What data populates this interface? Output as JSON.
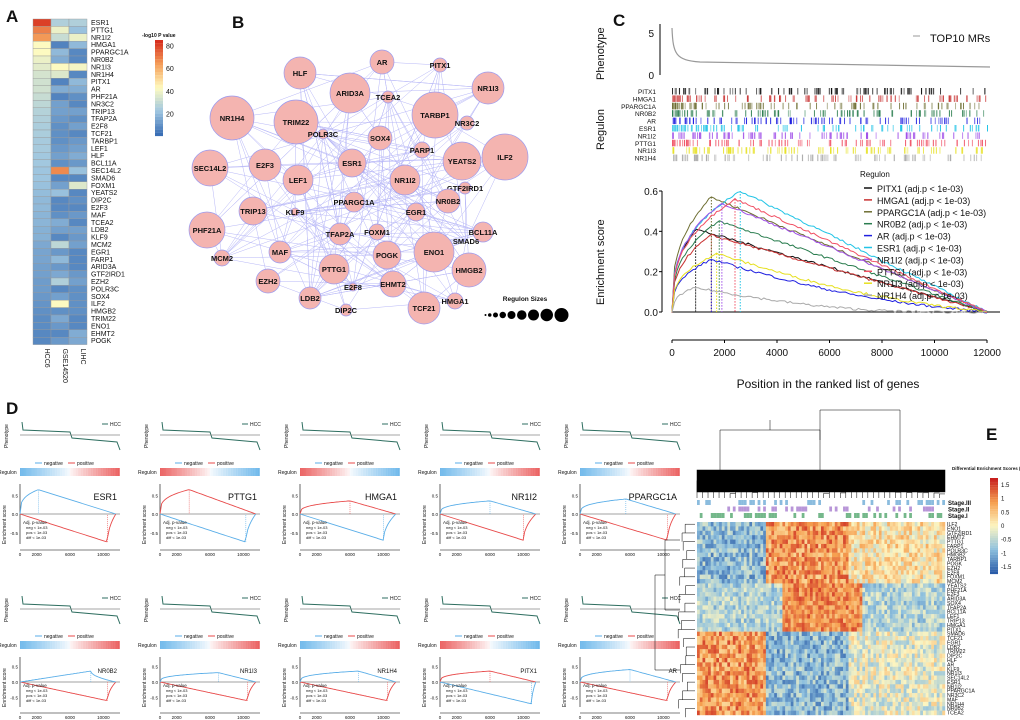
{
  "panel_labels": [
    "A",
    "B",
    "C",
    "D",
    "E"
  ],
  "chart_data": [
    {
      "type": "heatmap",
      "panel": "A",
      "colorbar_title": "-log10 P value",
      "colorbar_ticks": [
        20,
        40,
        60,
        80
      ],
      "colorbar_range": [
        0,
        85
      ],
      "colormap": [
        "#3a6fb5",
        "#9fc6e0",
        "#fffbc0",
        "#f5a05a",
        "#d7301f"
      ],
      "columns": [
        "HCC6",
        "GSE14520",
        "LIHC"
      ],
      "rows": [
        "ESR1",
        "PTTG1",
        "NR1I2",
        "HMGA1",
        "PPARGC1A",
        "NR0B2",
        "NR1I3",
        "NR1H4",
        "PITX1",
        "AR",
        "PHF21A",
        "NR3C2",
        "TRIP13",
        "TFAP2A",
        "E2F8",
        "TCF21",
        "TARBP1",
        "LEF1",
        "HLF",
        "BCL11A",
        "SEC14L2",
        "SMAD6",
        "FOXM1",
        "YEATS2",
        "DIP2C",
        "E2F3",
        "MAF",
        "TCEA2",
        "LDB2",
        "KLF9",
        "MCM2",
        "EGR1",
        "FARP1",
        "ARID3A",
        "GTF2IRD1",
        "EZH2",
        "POLR3C",
        "SOX4",
        "ILF2",
        "HMGB2",
        "TRIM22",
        "ENO1",
        "EHMT2",
        "POGK"
      ],
      "values": [
        [
          82,
          70,
          65,
          42,
          42,
          38,
          36,
          33,
          32,
          32,
          30,
          28,
          26,
          25,
          24,
          24,
          23,
          23,
          22,
          22,
          21,
          21,
          20,
          19,
          18,
          18,
          17,
          17,
          16,
          16,
          14,
          13,
          13,
          12,
          12,
          11,
          11,
          10,
          9,
          8,
          7,
          7,
          6,
          6
        ],
        [
          25,
          38,
          30,
          5,
          18,
          15,
          42,
          35,
          5,
          15,
          5,
          12,
          12,
          10,
          8,
          8,
          8,
          10,
          12,
          8,
          68,
          6,
          12,
          20,
          6,
          6,
          8,
          15,
          12,
          6,
          28,
          10,
          18,
          10,
          14,
          25,
          6,
          12,
          42,
          8,
          14,
          10,
          6,
          10
        ],
        [
          25,
          20,
          38,
          18,
          6,
          6,
          40,
          6,
          18,
          15,
          8,
          6,
          12,
          8,
          12,
          6,
          10,
          12,
          15,
          10,
          20,
          6,
          35,
          6,
          8,
          6,
          10,
          6,
          12,
          10,
          12,
          6,
          6,
          6,
          10,
          12,
          8,
          8,
          8,
          8,
          6,
          6,
          15,
          14
        ]
      ]
    },
    {
      "type": "network",
      "panel": "B",
      "node_color": "#f4b4b0",
      "edge_color": "#7c7cf0",
      "legend_title": "Regulon Sizes",
      "nodes": [
        "HLF",
        "AR",
        "PITX1",
        "NR1I3",
        "ARID3A",
        "TCEA2",
        "TARBP1",
        "NR3C2",
        "NR1H4",
        "TRIM22",
        "POLR3C",
        "SOX4",
        "PARP1",
        "YEATS2",
        "ILF2",
        "SEC14L2",
        "E2F3",
        "ESR1",
        "LEF1",
        "NR1I2",
        "GTF2IRD1",
        "NR0B2",
        "PPARGC1A",
        "TRIP13",
        "KLF9",
        "EGR1",
        "PHF21A",
        "TFAP2A",
        "FOXM1",
        "BCL11A",
        "SMAD6",
        "MAF",
        "ENO1",
        "MCM2",
        "POGK",
        "HMGB2",
        "PTTG1",
        "EZH2",
        "EHMT2",
        "E2F8",
        "LDB2",
        "HMGA1",
        "TCF21",
        "DIP2C"
      ]
    },
    {
      "type": "line",
      "panel": "C",
      "phenotype_ylabel": "Phenotype",
      "phenotype_yticks": [
        0,
        5
      ],
      "phenotype_legend": "TOP10 MRs",
      "regulon_ylabel": "Regulon",
      "ylabel": "Enrichment score",
      "xlabel": "Position in the ranked list of genes",
      "xlim": [
        0,
        12000
      ],
      "ylim": [
        0,
        0.6
      ],
      "xticks": [
        0,
        2000,
        4000,
        6000,
        8000,
        10000,
        12000
      ],
      "yticks": [
        "0.0",
        "0.2",
        "0.4",
        "0.6"
      ],
      "legend_title": "Regulon",
      "legend_position": "top-right",
      "series": [
        {
          "name": "PITX1 (adj.p < 1e-03)",
          "regulon": "PITX1",
          "color": "#111111",
          "peak_x": 900,
          "peak_es": 0.41
        },
        {
          "name": "HMGA1 (adj.p < 1e-03)",
          "regulon": "HMGA1",
          "color": "#c83232",
          "peak_x": 1500,
          "peak_es": 0.38
        },
        {
          "name": "PPARGC1A (adj.p < 1e-03)",
          "regulon": "PPARGC1A",
          "color": "#6e6e32",
          "peak_x": 1500,
          "peak_es": 0.57
        },
        {
          "name": "NR0B2 (adj.p < 1e-03)",
          "regulon": "NR0B2",
          "color": "#2a7d4f",
          "peak_x": 1800,
          "peak_es": 0.45
        },
        {
          "name": "AR (adj.p < 1e-03)",
          "regulon": "AR",
          "color": "#2020e0",
          "peak_x": 1500,
          "peak_es": 0.26
        },
        {
          "name": "ESR1 (adj.p < 1e-03)",
          "regulon": "ESR1",
          "color": "#22c4e6",
          "peak_x": 2600,
          "peak_es": 0.6
        },
        {
          "name": "NR1I2 (adj.p < 1e-03)",
          "regulon": "NR1I2",
          "color": "#a050e8",
          "peak_x": 1900,
          "peak_es": 0.54
        },
        {
          "name": "PTTG1 (adj.p < 1e-03)",
          "regulon": "PTTG1",
          "color": "#f05064",
          "peak_x": 2400,
          "peak_es": 0.56
        },
        {
          "name": "NR1I3 (adj.p < 1e-03)",
          "regulon": "NR1I3",
          "color": "#e6e020",
          "peak_x": 1700,
          "peak_es": 0.29
        },
        {
          "name": "NR1H4 (adj.p < 1e-03)",
          "regulon": "NR1H4",
          "color": "#aaaaaa",
          "peak_x": 900,
          "peak_es": 0.12
        }
      ]
    },
    {
      "type": "line",
      "panel": "D",
      "phenotype_label": "Phenotype",
      "phenotype_legend": "HCC",
      "regulon_label": "Regulon",
      "ylabel": "Enrichment score",
      "xlabel": "Position in the ranked list of genes",
      "legend": [
        "negative",
        "positive"
      ],
      "colors": {
        "negative": "#5aaee8",
        "positive": "#e84a4a",
        "phenotype": "#2e6e60"
      },
      "xticks": [
        0,
        2000,
        6000,
        10000
      ],
      "yticks": [
        "0.5",
        "0.0",
        "-0.5"
      ],
      "pvalue_title": "Adj. p-value",
      "pvalue_lines": [
        "neg < 1e-03",
        "pos < 1e-03",
        "diff < 1e-03"
      ],
      "plots": [
        {
          "regulon": "ESR1",
          "positive_es": -0.75,
          "negative_es": 0.65,
          "pos_peak_x": 10500,
          "neg_peak_x": 2200
        },
        {
          "regulon": "PTTG1",
          "positive_es": 0.65,
          "negative_es": -0.75,
          "pos_peak_x": 3500,
          "neg_peak_x": 10300
        },
        {
          "regulon": "HMGA1",
          "positive_es": 0.35,
          "negative_es": -0.7,
          "pos_peak_x": 6000,
          "neg_peak_x": 10000
        },
        {
          "regulon": "NR1I2",
          "positive_es": -0.7,
          "negative_es": 0.35,
          "pos_peak_x": 10000,
          "neg_peak_x": 6000
        },
        {
          "regulon": "PPARGC1A",
          "positive_es": -0.7,
          "negative_es": 0.4,
          "pos_peak_x": 10500,
          "neg_peak_x": 5500
        },
        {
          "regulon": "NR0B2",
          "positive_es": -0.6,
          "negative_es": 0.35,
          "pos_peak_x": 10500,
          "neg_peak_x": 8500
        },
        {
          "regulon": "NR1I3",
          "positive_es": -0.6,
          "negative_es": 0.3,
          "pos_peak_x": 10500,
          "neg_peak_x": 7000
        },
        {
          "regulon": "NR1H4",
          "positive_es": -0.6,
          "negative_es": 0.35,
          "pos_peak_x": 10500,
          "neg_peak_x": 7000
        },
        {
          "regulon": "PITX1",
          "positive_es": 0.35,
          "negative_es": -0.7,
          "pos_peak_x": 6000,
          "neg_peak_x": 11000
        },
        {
          "regulon": "AR",
          "positive_es": -0.6,
          "negative_es": 0.4,
          "pos_peak_x": 10500,
          "neg_peak_x": 6000
        }
      ]
    },
    {
      "type": "heatmap",
      "panel": "E",
      "colorbar_title": "Differential Enrichment Scores (dES)",
      "colorbar_ticks": [
        "1.5",
        "1",
        "0.5",
        "0",
        "-0.5",
        "-1",
        "-1.5"
      ],
      "colorbar_range": [
        -1.75,
        1.75
      ],
      "colormap": [
        "#2a5ca8",
        "#8fc1de",
        "#fdf5c0",
        "#f6a050",
        "#c8201e"
      ],
      "stages": [
        {
          "name": "Stage.III",
          "color": "#5aa0d0"
        },
        {
          "name": "Stage.II",
          "color": "#9a6ac8"
        },
        {
          "name": "Stage.I",
          "color": "#3a9a5a"
        }
      ],
      "rows": [
        "ILF2",
        "ENO1",
        "GTF2IRD1",
        "EHMT2",
        "PTTG1",
        "FARP1",
        "POLR3C",
        "HMGB2",
        "TARBP1",
        "POGK",
        "EZH2",
        "E2F8",
        "FOXM1",
        "MCM2",
        "YEATS2",
        "PHF21A",
        "E2F3",
        "ARID3A",
        "SOX4",
        "TFAP2A",
        "BCL11A",
        "LEF1",
        "TRIP13",
        "HMGA1",
        "PITX1",
        "SMAD6",
        "TCF21",
        "EGR1",
        "LDB2",
        "TRIM22",
        "DIP2C",
        "HLF",
        "AR",
        "KLF9",
        "NR1I3",
        "SEC14L2",
        "ESR1",
        "NR1I2",
        "PPARGC1A",
        "NR3C2",
        "MAF",
        "NR1H4",
        "NR0B2",
        "TCEA2"
      ]
    }
  ]
}
